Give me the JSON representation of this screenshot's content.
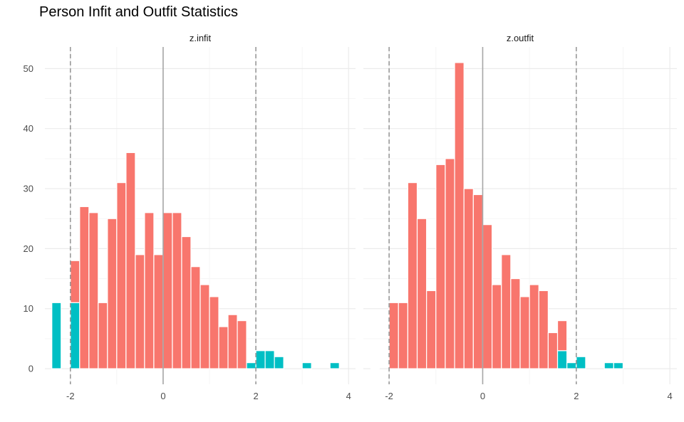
{
  "title": "Person Infit and Outfit Statistics",
  "colors": {
    "misfit": "#00BFC4",
    "fit": "#F8766D",
    "grid_major": "#EBEBEB",
    "grid_minor": "#F5F5F5",
    "zero_line": "#A6A6A6",
    "ref_line": "#999999"
  },
  "chart_data": [
    {
      "type": "bar",
      "panel": "z.infit",
      "strip_label": "z.infit",
      "xlim": [
        -2.55,
        4.15
      ],
      "ylim": [
        -2.6,
        53.6
      ],
      "x_ticks": [
        -2,
        0,
        2,
        4
      ],
      "x_tick_labels": [
        "-2",
        "0",
        "2",
        "4"
      ],
      "y_ticks": [
        0,
        10,
        20,
        30,
        40,
        50
      ],
      "y_tick_labels": [
        "0",
        "10",
        "20",
        "30",
        "40",
        "50"
      ],
      "bin_width": 0.2,
      "reference_lines": {
        "dashed": [
          -2,
          2
        ],
        "solid": [
          0
        ]
      },
      "grid": true,
      "bins": [
        {
          "x": -2.3,
          "misfit": 11,
          "fit": 0
        },
        {
          "x": -1.9,
          "misfit": 11,
          "fit": 7
        },
        {
          "x": -1.7,
          "misfit": 0,
          "fit": 27
        },
        {
          "x": -1.5,
          "misfit": 0,
          "fit": 26
        },
        {
          "x": -1.3,
          "misfit": 0,
          "fit": 11
        },
        {
          "x": -1.1,
          "misfit": 0,
          "fit": 25
        },
        {
          "x": -0.9,
          "misfit": 0,
          "fit": 31
        },
        {
          "x": -0.7,
          "misfit": 0,
          "fit": 36
        },
        {
          "x": -0.5,
          "misfit": 0,
          "fit": 19
        },
        {
          "x": -0.3,
          "misfit": 0,
          "fit": 26
        },
        {
          "x": -0.1,
          "misfit": 0,
          "fit": 19
        },
        {
          "x": 0.1,
          "misfit": 0,
          "fit": 26
        },
        {
          "x": 0.3,
          "misfit": 0,
          "fit": 26
        },
        {
          "x": 0.5,
          "misfit": 0,
          "fit": 22
        },
        {
          "x": 0.7,
          "misfit": 0,
          "fit": 17
        },
        {
          "x": 0.9,
          "misfit": 0,
          "fit": 14
        },
        {
          "x": 1.1,
          "misfit": 0,
          "fit": 12
        },
        {
          "x": 1.3,
          "misfit": 0,
          "fit": 7
        },
        {
          "x": 1.5,
          "misfit": 0,
          "fit": 9
        },
        {
          "x": 1.7,
          "misfit": 0,
          "fit": 8
        },
        {
          "x": 1.9,
          "misfit": 1,
          "fit": 0
        },
        {
          "x": 2.1,
          "misfit": 3,
          "fit": 0
        },
        {
          "x": 2.3,
          "misfit": 3,
          "fit": 0
        },
        {
          "x": 2.5,
          "misfit": 2,
          "fit": 0
        },
        {
          "x": 3.1,
          "misfit": 1,
          "fit": 0
        },
        {
          "x": 3.7,
          "misfit": 1,
          "fit": 0
        }
      ]
    },
    {
      "type": "bar",
      "panel": "z.outfit",
      "strip_label": "z.outfit",
      "xlim": [
        -2.55,
        4.15
      ],
      "ylim": [
        -2.6,
        53.6
      ],
      "x_ticks": [
        -2,
        0,
        2,
        4
      ],
      "x_tick_labels": [
        "-2",
        "0",
        "2",
        "4"
      ],
      "bin_width": 0.2,
      "reference_lines": {
        "dashed": [
          -2,
          2
        ],
        "solid": [
          0
        ]
      },
      "grid": true,
      "bins": [
        {
          "x": -2.3,
          "misfit": 0,
          "fit": 0
        },
        {
          "x": -1.9,
          "misfit": 0,
          "fit": 11
        },
        {
          "x": -1.7,
          "misfit": 0,
          "fit": 11
        },
        {
          "x": -1.5,
          "misfit": 0,
          "fit": 31
        },
        {
          "x": -1.3,
          "misfit": 0,
          "fit": 25
        },
        {
          "x": -1.1,
          "misfit": 0,
          "fit": 13
        },
        {
          "x": -0.9,
          "misfit": 0,
          "fit": 34
        },
        {
          "x": -0.7,
          "misfit": 0,
          "fit": 35
        },
        {
          "x": -0.5,
          "misfit": 0,
          "fit": 51
        },
        {
          "x": -0.3,
          "misfit": 0,
          "fit": 30
        },
        {
          "x": -0.1,
          "misfit": 0,
          "fit": 29
        },
        {
          "x": 0.1,
          "misfit": 0,
          "fit": 24
        },
        {
          "x": 0.3,
          "misfit": 0,
          "fit": 14
        },
        {
          "x": 0.5,
          "misfit": 0,
          "fit": 19
        },
        {
          "x": 0.7,
          "misfit": 0,
          "fit": 15
        },
        {
          "x": 0.9,
          "misfit": 0,
          "fit": 12
        },
        {
          "x": 1.1,
          "misfit": 0,
          "fit": 14
        },
        {
          "x": 1.3,
          "misfit": 0,
          "fit": 13
        },
        {
          "x": 1.5,
          "misfit": 0,
          "fit": 6
        },
        {
          "x": 1.7,
          "misfit": 3,
          "fit": 5
        },
        {
          "x": 1.9,
          "misfit": 1,
          "fit": 0
        },
        {
          "x": 2.1,
          "misfit": 2,
          "fit": 0
        },
        {
          "x": 2.7,
          "misfit": 1,
          "fit": 0
        },
        {
          "x": 2.9,
          "misfit": 1,
          "fit": 0
        }
      ]
    }
  ]
}
